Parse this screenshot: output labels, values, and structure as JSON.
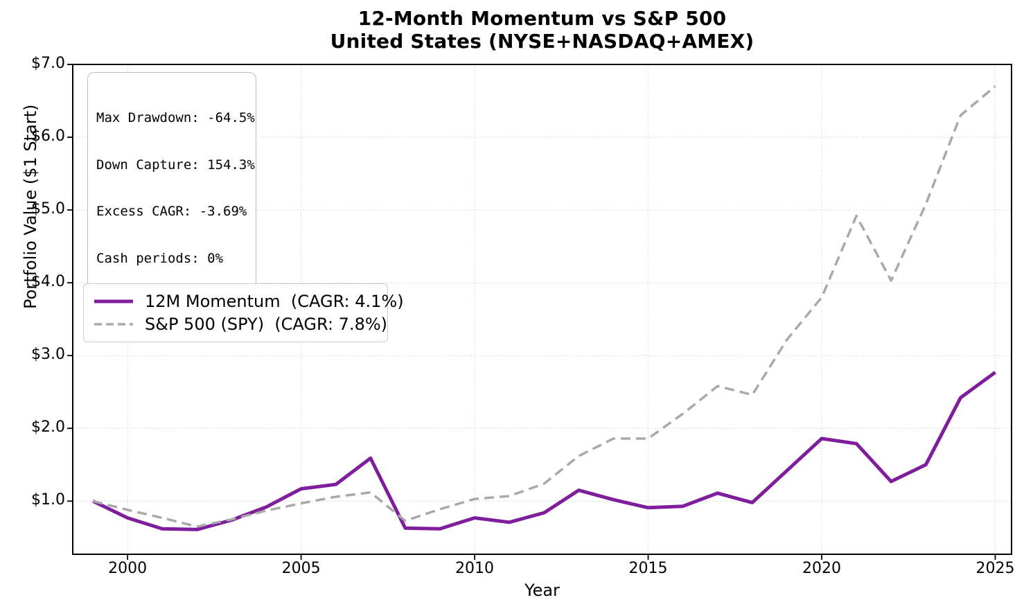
{
  "title": {
    "line1": "12-Month Momentum vs S&P 500",
    "line2": "United States (NYSE+NASDAQ+AMEX)"
  },
  "stats_box": {
    "lines": [
      "Max Drawdown: -64.5%",
      "Down Capture: 154.3%",
      "Excess CAGR: -3.69%",
      "Cash periods: 0%"
    ]
  },
  "legend": {
    "items": [
      {
        "label": "12M Momentum  (CAGR: 4.1%)",
        "color": "#7e1e9c",
        "style": "solid",
        "swatch_width": 5
      },
      {
        "label": "S&P 500 (SPY)  (CAGR: 7.8%)",
        "color": "#a9a9a9",
        "style": "dashed",
        "swatch_width": 3.5
      }
    ]
  },
  "axes": {
    "xlabel": "Year",
    "ylabel": "Portfolio Value ($1 Start)"
  },
  "colors": {
    "momentum_line": "#7e1e9c",
    "spy_line": "#a9a9a9",
    "grid": "#d9d9d9",
    "spine": "#000000"
  },
  "chart_data": {
    "type": "line",
    "title": [
      "12-Month Momentum vs S&P 500",
      "United States (NYSE+NASDAQ+AMEX)"
    ],
    "xlabel": "Year",
    "ylabel": "Portfolio Value ($1 Start)",
    "x": [
      1999,
      2000,
      2001,
      2002,
      2003,
      2004,
      2005,
      2006,
      2007,
      2008,
      2009,
      2010,
      2011,
      2012,
      2013,
      2014,
      2015,
      2016,
      2017,
      2018,
      2019,
      2020,
      2021,
      2022,
      2023,
      2024,
      2025
    ],
    "series": [
      {
        "name": "12M Momentum  (CAGR: 4.1%)",
        "color": "#7e1e9c",
        "style": "solid",
        "width": 5,
        "values": [
          1.0,
          0.77,
          0.62,
          0.61,
          0.74,
          0.92,
          1.17,
          1.23,
          1.59,
          0.63,
          0.62,
          0.77,
          0.71,
          0.84,
          1.15,
          1.02,
          0.91,
          0.93,
          1.11,
          0.98,
          1.42,
          1.86,
          1.79,
          1.27,
          1.5,
          2.42,
          2.77
        ]
      },
      {
        "name": "S&P 500 (SPY)  (CAGR: 7.8%)",
        "color": "#a9a9a9",
        "style": "dashed",
        "width": 3.5,
        "values": [
          1.0,
          0.88,
          0.77,
          0.65,
          0.75,
          0.87,
          0.97,
          1.06,
          1.12,
          0.73,
          0.89,
          1.03,
          1.07,
          1.24,
          1.62,
          1.86,
          1.86,
          2.2,
          2.58,
          2.46,
          3.22,
          3.8,
          4.92,
          4.03,
          5.08,
          6.3,
          6.7
        ]
      }
    ],
    "xlim": [
      1998.42,
      2025.47
    ],
    "ylim": [
      0.27,
      7.0
    ],
    "x_ticks": [
      2000,
      2005,
      2010,
      2015,
      2020,
      2025
    ],
    "y_ticks": [
      1.0,
      2.0,
      3.0,
      4.0,
      5.0,
      6.0,
      7.0
    ],
    "y_tick_labels": [
      "$1.0",
      "$2.0",
      "$3.0",
      "$4.0",
      "$5.0",
      "$6.0",
      "$7.0"
    ],
    "grid": "dotted, both axes",
    "legend_position": "center left",
    "stats_annotation": [
      "Max Drawdown: -64.5%",
      "Down Capture: 154.3%",
      "Excess CAGR: -3.69%",
      "Cash periods: 0%"
    ]
  }
}
